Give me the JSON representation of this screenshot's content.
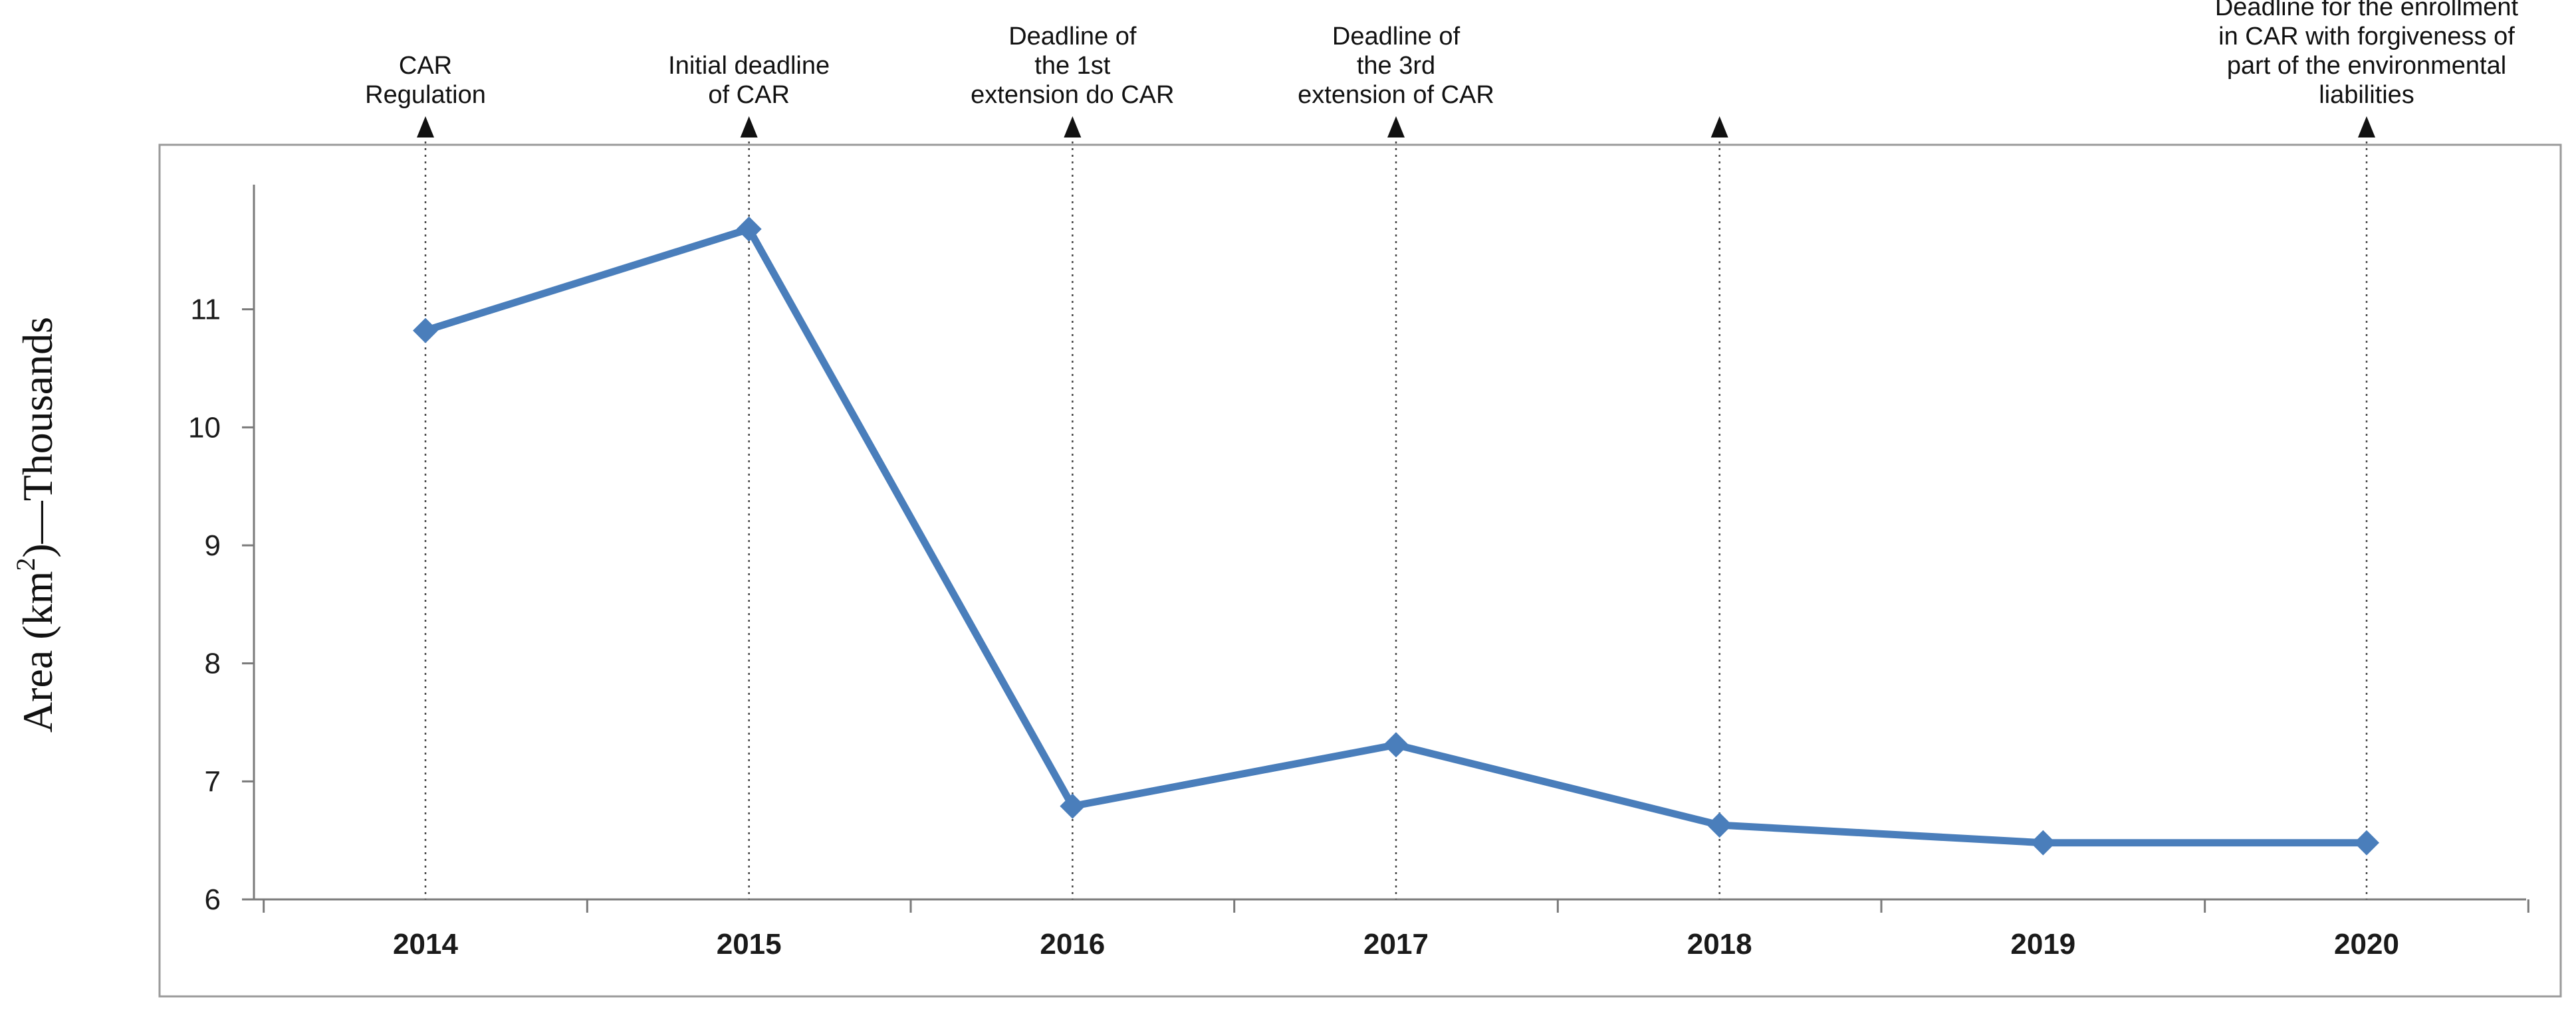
{
  "chart_data": {
    "type": "line",
    "title": "",
    "ylabel_prefix": "Area (km",
    "ylabel_superscript": "2",
    "ylabel_suffix": ")—Thousands",
    "xlabel": "",
    "x": [
      "2014",
      "2015",
      "2016",
      "2017",
      "2018",
      "2019",
      "2020"
    ],
    "series": [
      {
        "values": [
          10.82,
          11.68,
          6.79,
          7.31,
          6.63,
          6.48,
          6.48
        ],
        "color": "#4a7ebb"
      }
    ],
    "ylim": [
      6,
      12
    ],
    "yticks": [
      "6",
      "7",
      "8",
      "9",
      "10",
      "11"
    ],
    "grid": false,
    "legend": "none",
    "annotations": [
      {
        "x": "2014",
        "lines": [
          "CAR",
          "Regulation"
        ]
      },
      {
        "x": "2015",
        "lines": [
          "Initial deadline",
          "of CAR"
        ]
      },
      {
        "x": "2016",
        "lines": [
          "Deadline of",
          "the 1st",
          "extension do CAR"
        ]
      },
      {
        "x": "2017",
        "lines": [
          "Deadline of",
          "the 3rd",
          "extension of CAR"
        ]
      },
      {
        "x": "2018",
        "lines": []
      },
      {
        "x": "2020",
        "lines": [
          "Deadline for the enrollment",
          "in CAR with forgiveness of",
          "part of the environmental",
          "liabilities"
        ]
      }
    ]
  }
}
